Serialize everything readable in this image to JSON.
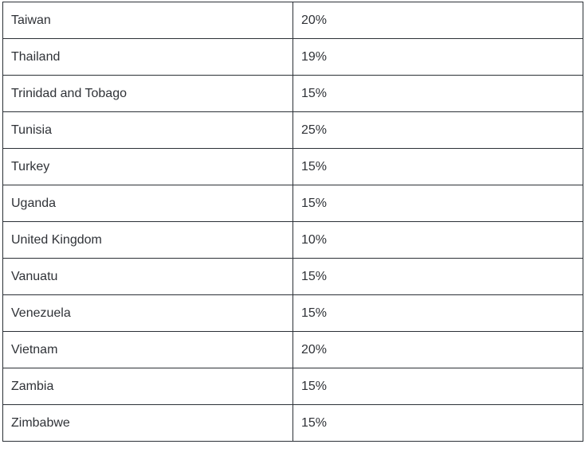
{
  "rows": [
    {
      "country": "Taiwan",
      "rate": "20%"
    },
    {
      "country": "Thailand",
      "rate": "19%"
    },
    {
      "country": "Trinidad and Tobago",
      "rate": "15%"
    },
    {
      "country": "Tunisia",
      "rate": "25%"
    },
    {
      "country": "Turkey",
      "rate": "15%"
    },
    {
      "country": "Uganda",
      "rate": "15%"
    },
    {
      "country": "United Kingdom",
      "rate": "10%"
    },
    {
      "country": "Vanuatu",
      "rate": "15%"
    },
    {
      "country": "Venezuela",
      "rate": "15%"
    },
    {
      "country": "Vietnam",
      "rate": "20%"
    },
    {
      "country": "Zambia",
      "rate": "15%"
    },
    {
      "country": "Zimbabwe",
      "rate": "15%"
    }
  ]
}
